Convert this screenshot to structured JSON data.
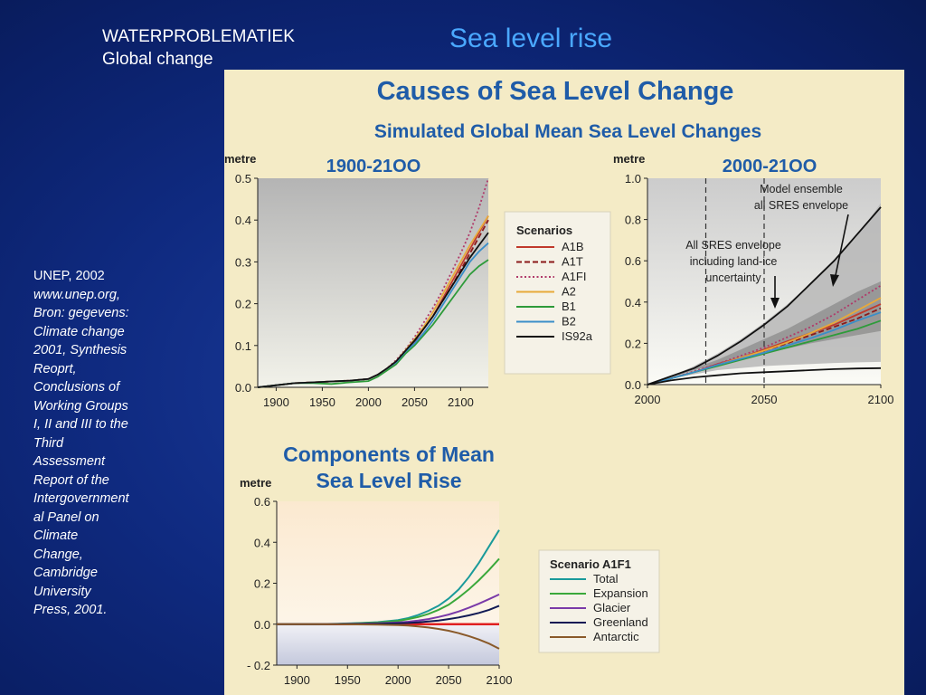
{
  "header": {
    "line1": "WATERPROBLEMATIEK",
    "line2": "Global change",
    "slide_title": "Sea level rise"
  },
  "source_note": {
    "line1": "UNEP, 2002",
    "italic_lines": [
      "www.unep.org,",
      "Bron: gegevens:",
      "Climate change",
      "2001, Synthesis",
      "Reoprt,",
      "Conclusions of",
      "Working Groups",
      "I, II and III to the",
      "Third",
      "Assessment",
      "Report of the",
      "Intergovernment",
      "al Panel on",
      "Climate",
      "Change,",
      "Cambridge",
      "University",
      "Press, 2001."
    ]
  },
  "figure": {
    "title": "Causes of Sea Level Change",
    "subtitle": "Simulated Global Mean Sea Level Changes",
    "colors": {
      "A1B": "#c0392b",
      "A1T": "#8b1a1a",
      "A1FI": "#b03a6a",
      "A2": "#e8a93a",
      "B1": "#2e9b3a",
      "B2": "#3a8ec8",
      "IS92a": "#111111",
      "Total": "#1a9a9a",
      "Expansion": "#3aa83a",
      "Glacier": "#7a3aa8",
      "Greenland": "#111a55",
      "Antarctic": "#8a5a2a",
      "Zero": "#e02020"
    }
  },
  "chart_data": [
    {
      "type": "line",
      "title": "1900-21OO",
      "ylabel": "metre",
      "xlim": [
        1880,
        2130
      ],
      "ylim": [
        0,
        0.5
      ],
      "x_ticks": [
        1900,
        1950,
        2000,
        2050,
        2100
      ],
      "y_ticks": [
        "0.0",
        "0.1",
        "0.2",
        "0.3",
        "0.4",
        "0.5"
      ],
      "legend_title": "Scenarios",
      "legend_position": "right",
      "legend": [
        "A1B",
        "A1T",
        "A1FI",
        "A2",
        "B1",
        "B2",
        "IS92a"
      ],
      "x": [
        1880,
        1900,
        1920,
        1940,
        1960,
        1980,
        2000,
        2010,
        2020,
        2030,
        2040,
        2050,
        2060,
        2070,
        2080,
        2090,
        2100,
        2110,
        2120,
        2130
      ],
      "series": [
        {
          "name": "A1B",
          "style": "solid",
          "values": [
            0,
            0.005,
            0.01,
            0.012,
            0.014,
            0.016,
            0.02,
            0.03,
            0.045,
            0.06,
            0.085,
            0.11,
            0.14,
            0.17,
            0.21,
            0.25,
            0.29,
            0.33,
            0.37,
            0.41
          ]
        },
        {
          "name": "A1T",
          "style": "dashed",
          "values": [
            0,
            0.005,
            0.01,
            0.012,
            0.014,
            0.016,
            0.02,
            0.03,
            0.045,
            0.06,
            0.085,
            0.11,
            0.14,
            0.17,
            0.205,
            0.24,
            0.28,
            0.32,
            0.36,
            0.4
          ]
        },
        {
          "name": "A1FI",
          "style": "dotted",
          "values": [
            0,
            0.005,
            0.01,
            0.012,
            0.014,
            0.016,
            0.02,
            0.03,
            0.045,
            0.065,
            0.09,
            0.12,
            0.155,
            0.19,
            0.23,
            0.275,
            0.32,
            0.37,
            0.43,
            0.5
          ]
        },
        {
          "name": "A2",
          "style": "solid",
          "values": [
            0,
            0.005,
            0.01,
            0.012,
            0.014,
            0.016,
            0.02,
            0.03,
            0.045,
            0.062,
            0.088,
            0.115,
            0.145,
            0.18,
            0.22,
            0.26,
            0.3,
            0.34,
            0.375,
            0.41
          ]
        },
        {
          "name": "B1",
          "style": "solid",
          "values": [
            0,
            0.005,
            0.01,
            0.01,
            0.008,
            0.012,
            0.015,
            0.025,
            0.04,
            0.055,
            0.08,
            0.1,
            0.125,
            0.15,
            0.18,
            0.21,
            0.24,
            0.27,
            0.29,
            0.305
          ]
        },
        {
          "name": "B2",
          "style": "solid",
          "values": [
            0,
            0.005,
            0.01,
            0.012,
            0.014,
            0.016,
            0.02,
            0.03,
            0.045,
            0.06,
            0.085,
            0.105,
            0.13,
            0.16,
            0.195,
            0.23,
            0.265,
            0.3,
            0.325,
            0.345
          ]
        },
        {
          "name": "IS92a",
          "style": "solid",
          "values": [
            0,
            0.005,
            0.01,
            0.012,
            0.014,
            0.016,
            0.02,
            0.03,
            0.045,
            0.062,
            0.087,
            0.112,
            0.14,
            0.17,
            0.205,
            0.24,
            0.275,
            0.31,
            0.34,
            0.37
          ]
        }
      ]
    },
    {
      "type": "line",
      "title": "2000-21OO",
      "ylabel": "metre",
      "xlim": [
        2000,
        2100
      ],
      "ylim": [
        0,
        1.0
      ],
      "x_ticks": [
        2000,
        2050,
        2100
      ],
      "y_ticks": [
        "0.0",
        "0.2",
        "0.4",
        "0.6",
        "0.8",
        "1.0"
      ],
      "reference_lines_x": [
        2025,
        2050
      ],
      "annotations": [
        {
          "text": [
            "Model ensemble",
            "all SRES envelope"
          ]
        },
        {
          "text": [
            "All SRES envelope",
            "including land-ice",
            "uncertainty"
          ]
        }
      ],
      "x": [
        2000,
        2010,
        2020,
        2030,
        2040,
        2050,
        2060,
        2070,
        2080,
        2090,
        2100
      ],
      "outer_envelope": {
        "lower": [
          0,
          0.03,
          0.05,
          0.07,
          0.08,
          0.09,
          0.095,
          0.1,
          0.105,
          0.108,
          0.11
        ],
        "upper": [
          0,
          0.04,
          0.09,
          0.15,
          0.22,
          0.3,
          0.39,
          0.49,
          0.6,
          0.72,
          0.88
        ]
      },
      "inner_envelope": {
        "lower": [
          0,
          0.035,
          0.07,
          0.1,
          0.13,
          0.15,
          0.175,
          0.2,
          0.22,
          0.24,
          0.26
        ],
        "upper": [
          0,
          0.04,
          0.08,
          0.12,
          0.17,
          0.22,
          0.27,
          0.33,
          0.39,
          0.45,
          0.5
        ]
      },
      "series": [
        {
          "name": "A1B",
          "style": "solid",
          "values": [
            0,
            0.03,
            0.06,
            0.1,
            0.13,
            0.17,
            0.21,
            0.25,
            0.29,
            0.34,
            0.39
          ]
        },
        {
          "name": "A1T",
          "style": "dashed",
          "values": [
            0,
            0.03,
            0.06,
            0.095,
            0.13,
            0.165,
            0.2,
            0.24,
            0.28,
            0.32,
            0.37
          ]
        },
        {
          "name": "A1FI",
          "style": "dotted",
          "values": [
            0,
            0.03,
            0.065,
            0.1,
            0.14,
            0.18,
            0.23,
            0.28,
            0.34,
            0.41,
            0.48
          ]
        },
        {
          "name": "A2",
          "style": "solid",
          "values": [
            0,
            0.03,
            0.06,
            0.095,
            0.13,
            0.165,
            0.205,
            0.25,
            0.3,
            0.36,
            0.42
          ]
        },
        {
          "name": "B1",
          "style": "solid",
          "values": [
            0,
            0.03,
            0.06,
            0.09,
            0.12,
            0.15,
            0.18,
            0.21,
            0.24,
            0.27,
            0.31
          ]
        },
        {
          "name": "B2",
          "style": "solid",
          "values": [
            0,
            0.03,
            0.06,
            0.095,
            0.125,
            0.155,
            0.19,
            0.225,
            0.265,
            0.31,
            0.35
          ]
        },
        {
          "name": "IS92a",
          "style": "solid",
          "values": [
            0,
            0.04,
            0.08,
            0.14,
            0.21,
            0.29,
            0.38,
            0.49,
            0.6,
            0.73,
            0.86
          ]
        },
        {
          "name": "IS92a",
          "style": "solid",
          "values": [
            0,
            0.02,
            0.035,
            0.045,
            0.055,
            0.06,
            0.065,
            0.07,
            0.075,
            0.078,
            0.08
          ]
        }
      ]
    },
    {
      "type": "line",
      "title": "Components of Mean Sea Level Rise",
      "ylabel": "metre",
      "xlim": [
        1880,
        2100
      ],
      "ylim": [
        -0.2,
        0.6
      ],
      "x_ticks": [
        1900,
        1950,
        2000,
        2050,
        2100
      ],
      "y_ticks": [
        "- 0.2",
        "0.0",
        "0.2",
        "0.4",
        "0.6"
      ],
      "legend_title": "Scenario A1F1",
      "legend_position": "right",
      "legend": [
        "Total",
        "Expansion",
        "Glacier",
        "Greenland",
        "Antarctic"
      ],
      "x": [
        1880,
        1900,
        1920,
        1940,
        1960,
        1980,
        2000,
        2010,
        2020,
        2030,
        2040,
        2050,
        2060,
        2070,
        2080,
        2090,
        2100
      ],
      "series": [
        {
          "name": "Total",
          "values": [
            0,
            0,
            0,
            0.002,
            0.005,
            0.01,
            0.02,
            0.03,
            0.045,
            0.065,
            0.09,
            0.125,
            0.17,
            0.23,
            0.3,
            0.38,
            0.46
          ]
        },
        {
          "name": "Expansion",
          "values": [
            0,
            0,
            0,
            0.001,
            0.004,
            0.008,
            0.016,
            0.025,
            0.035,
            0.05,
            0.07,
            0.095,
            0.13,
            0.17,
            0.215,
            0.265,
            0.32
          ]
        },
        {
          "name": "Glacier",
          "values": [
            0,
            0,
            0,
            0.001,
            0.002,
            0.004,
            0.008,
            0.012,
            0.018,
            0.025,
            0.035,
            0.047,
            0.062,
            0.08,
            0.1,
            0.122,
            0.145
          ]
        },
        {
          "name": "Greenland",
          "values": [
            0,
            0,
            0,
            0,
            0.001,
            0.002,
            0.004,
            0.006,
            0.009,
            0.013,
            0.018,
            0.025,
            0.033,
            0.043,
            0.055,
            0.07,
            0.09
          ]
        },
        {
          "name": "Antarctic",
          "values": [
            0,
            0,
            0,
            0,
            -0.001,
            -0.002,
            -0.004,
            -0.007,
            -0.011,
            -0.016,
            -0.023,
            -0.032,
            -0.044,
            -0.058,
            -0.075,
            -0.095,
            -0.12
          ]
        }
      ]
    }
  ]
}
